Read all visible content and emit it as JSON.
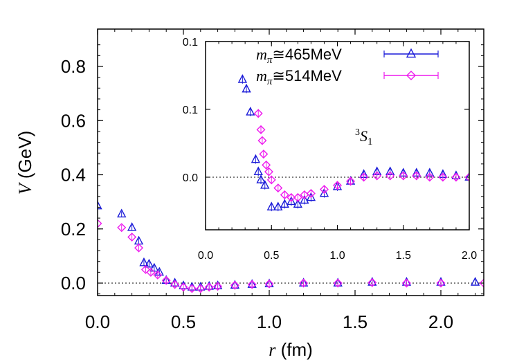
{
  "chart_data": [
    {
      "type": "scatter",
      "xlabel": {
        "var": "r",
        "unit": " (fm)"
      },
      "ylabel": {
        "var": "V",
        "unit": " (GeV)"
      },
      "xlim": [
        0,
        2.25
      ],
      "ylim": [
        -0.05,
        0.93
      ],
      "xticks": [
        "0.0",
        "0.5",
        "1.0",
        "1.5",
        "2.0"
      ],
      "yticks": [
        "0.0",
        "0.2",
        "0.4",
        "0.6",
        "0.8"
      ],
      "zero_line": "dotted",
      "series": [
        {
          "name": "mπ≅465MeV",
          "marker": "triangle",
          "color": "#1a1ad8",
          "x": [
            0.0,
            0.14,
            0.2,
            0.24,
            0.27,
            0.3,
            0.33,
            0.36,
            0.4,
            0.45,
            0.5,
            0.55,
            0.6,
            0.65,
            0.7,
            0.8,
            0.9,
            1.0,
            1.2,
            1.4,
            1.6,
            1.8,
            2.0,
            2.2
          ],
          "y": [
            0.285,
            0.255,
            0.205,
            0.155,
            0.075,
            0.07,
            0.055,
            0.04,
            0.01,
            0.0,
            -0.01,
            -0.015,
            -0.015,
            -0.012,
            -0.01,
            -0.008,
            -0.005,
            -0.003,
            0.0,
            0.0,
            0.003,
            0.003,
            0.003,
            0.003
          ]
        },
        {
          "name": "mπ≅514MeV",
          "marker": "diamond",
          "color": "#ee1bee",
          "x": [
            0.0,
            0.14,
            0.2,
            0.24,
            0.28,
            0.31,
            0.35,
            0.4,
            0.45,
            0.5,
            0.55,
            0.6,
            0.65,
            0.7,
            0.8,
            0.9,
            1.0,
            1.2,
            1.4,
            1.6,
            1.8,
            2.0,
            2.25
          ],
          "y": [
            0.22,
            0.205,
            0.17,
            0.13,
            0.05,
            0.04,
            0.03,
            0.01,
            -0.005,
            -0.015,
            -0.02,
            -0.02,
            -0.015,
            -0.012,
            -0.008,
            -0.005,
            -0.003,
            0.0,
            0.0,
            0.002,
            0.0,
            0.0,
            0.0
          ]
        }
      ]
    },
    {
      "type": "scatter",
      "annotation": "3S1",
      "xlim": [
        0,
        2.0
      ],
      "ylim": [
        -0.04,
        0.1
      ],
      "xticks": [
        "0.0",
        "0.5",
        "1.0",
        "1.5",
        "2.0"
      ],
      "yticks": [
        "0.0",
        "0.1",
        "0.1"
      ],
      "zero_line": "dotted",
      "legend": "top-right",
      "series": [
        {
          "name": "mπ≅465MeV",
          "marker": "triangle",
          "color": "#1a1ad8",
          "x": [
            0.28,
            0.31,
            0.34,
            0.38,
            0.4,
            0.42,
            0.45,
            0.5,
            0.55,
            0.6,
            0.65,
            0.7,
            0.75,
            0.8,
            0.9,
            1.0,
            1.1,
            1.2,
            1.3,
            1.4,
            1.5,
            1.6,
            1.7,
            1.8,
            1.9,
            2.0
          ],
          "y": [
            0.072,
            0.065,
            0.048,
            0.013,
            0.004,
            -0.002,
            -0.006,
            -0.022,
            -0.022,
            -0.02,
            -0.018,
            -0.02,
            -0.017,
            -0.015,
            -0.012,
            -0.007,
            -0.003,
            0.002,
            0.004,
            0.004,
            0.003,
            0.003,
            0.003,
            0.002,
            0.001,
            0.0
          ]
        },
        {
          "name": "mπ≅514MeV",
          "marker": "diamond",
          "color": "#ee1bee",
          "x": [
            0.4,
            0.42,
            0.43,
            0.44,
            0.46,
            0.48,
            0.5,
            0.55,
            0.6,
            0.65,
            0.7,
            0.75,
            0.8,
            0.9,
            1.0,
            1.1,
            1.2,
            1.3,
            1.4,
            1.5,
            1.6,
            1.7,
            1.8,
            1.9,
            2.0
          ],
          "y": [
            0.047,
            0.035,
            0.027,
            0.017,
            0.009,
            0.004,
            -0.002,
            -0.008,
            -0.013,
            -0.015,
            -0.015,
            -0.013,
            -0.012,
            -0.009,
            -0.006,
            -0.003,
            0.0,
            0.001,
            0.001,
            0.001,
            0.001,
            0.0,
            0.0,
            0.0,
            0.0
          ]
        }
      ]
    }
  ]
}
